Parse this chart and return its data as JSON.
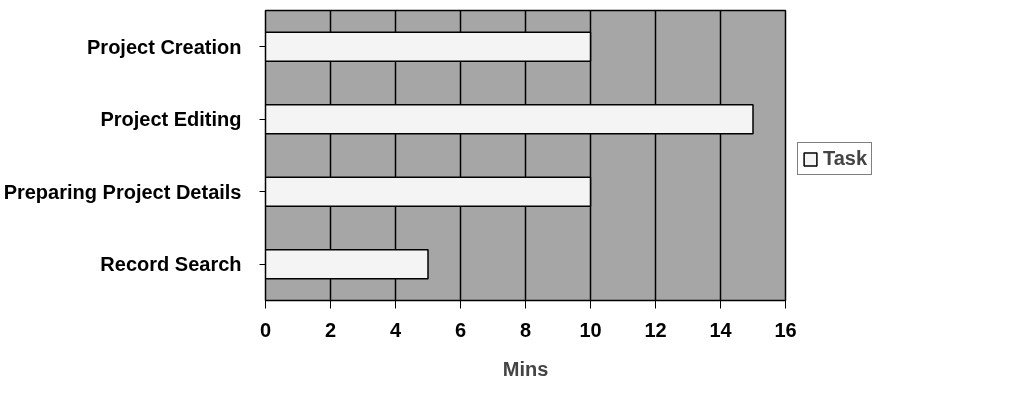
{
  "chart_data": {
    "type": "bar",
    "orientation": "horizontal",
    "xlabel": "Mins",
    "categories": [
      "Project Creation",
      "Project Editing",
      "Preparing Project Details",
      "Record Search"
    ],
    "series": [
      {
        "name": "Task",
        "color": "#f4f4f4",
        "values": [
          10,
          15,
          10,
          5
        ]
      }
    ],
    "xlim": [
      0,
      16
    ],
    "xticks": [
      0,
      2,
      4,
      6,
      8,
      10,
      12,
      14,
      16
    ],
    "grid": "x",
    "legend": "right"
  }
}
